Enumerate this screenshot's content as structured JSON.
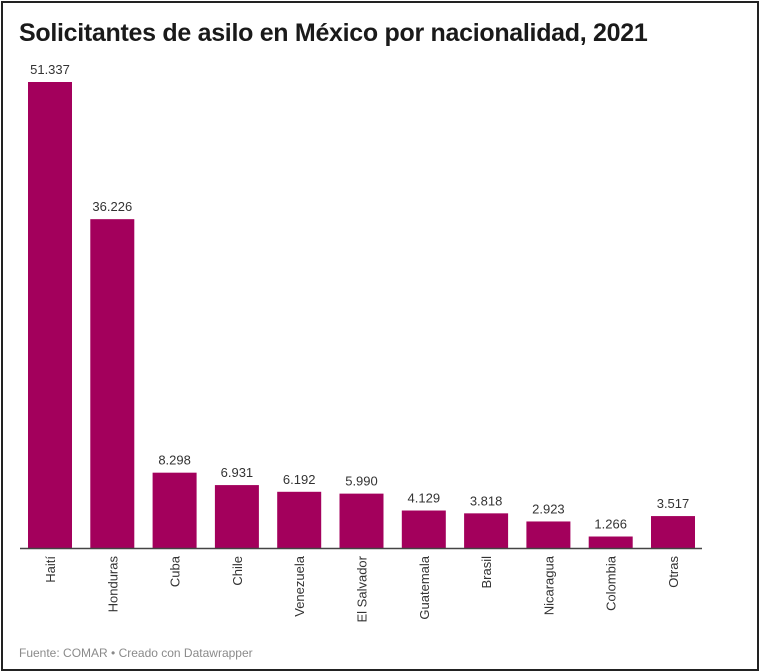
{
  "chart_data": {
    "type": "bar",
    "title": "Solicitantes de asilo en México por nacionalidad, 2021",
    "categories": [
      "Haití",
      "Honduras",
      "Cuba",
      "Chile",
      "Venezuela",
      "El Salvador",
      "Guatemala",
      "Brasil",
      "Nicaragua",
      "Colombia",
      "Otras"
    ],
    "values": [
      51337,
      36226,
      8298,
      6931,
      6192,
      5990,
      4129,
      3818,
      2923,
      1266,
      3517
    ],
    "value_labels": [
      "51.337",
      "36.226",
      "8.298",
      "6.931",
      "6.192",
      "5.990",
      "4.129",
      "3.818",
      "2.923",
      "1.266",
      "3.517"
    ],
    "xlabel": "",
    "ylabel": "",
    "ylim": [
      0,
      51337
    ],
    "grid": false,
    "bar_color": "#a3005c",
    "footer": "Fuente: COMAR • Creado con Datawrapper"
  }
}
